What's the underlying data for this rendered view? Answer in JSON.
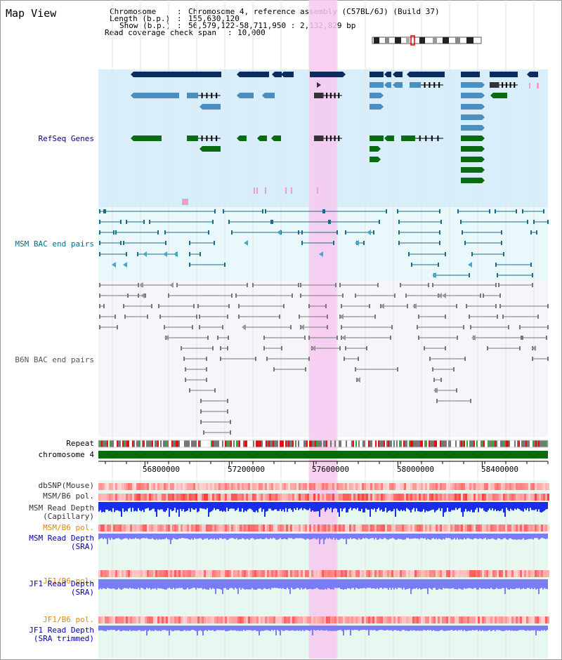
{
  "view_title": "Map View",
  "info": {
    "chromosome_label": "Chromosome",
    "chromosome_value": "Chromosome 4, reference assembly (C57BL/6J) (Build 37)",
    "length_label": "Length (b.p.)",
    "length_value": "155,630,120",
    "show_label": "Show (b.p.)",
    "show_value": "56,579,122-58,711,950 : 2,132,829 bp",
    "coverage_label": "Read coverage check span",
    "coverage_value": "10,000"
  },
  "tracks": {
    "refseq": {
      "label": "RefSeq Genes",
      "color": "#00008b"
    },
    "msm_bac": {
      "label": "MSM BAC end pairs",
      "color": "#006b8b"
    },
    "b6n_bac": {
      "label": "B6N BAC end pairs",
      "color": "#555555"
    },
    "repeat": {
      "label": "Repeat",
      "color": "#000000"
    },
    "chromosome": {
      "label": "chromosome 4",
      "color": "#000000"
    },
    "dbsnp": {
      "label": "dbSNP(Mouse)",
      "color": "#000000"
    },
    "msm_b6_pol_1": {
      "label": "MSM/B6 pol.",
      "color": "#000000"
    },
    "msm_depth_cap": {
      "label": "MSM Read Depth\n(Capillary)",
      "color": "#000000"
    },
    "msm_b6_pol_2": {
      "label": "MSM/B6 pol.",
      "color": "#e08a00"
    },
    "msm_depth_sra": {
      "label": "MSM Read Depth\n(SRA)",
      "color": "#0000aa"
    },
    "jf1_b6_pol_1": {
      "label": "JF1/B6 pol.",
      "color": "#e08a00"
    },
    "jf1_depth_sra": {
      "label": "JF1 Read Depth\n(SRA)",
      "color": "#0000aa"
    },
    "jf1_b6_pol_2": {
      "label": "JF1/B6 pol.",
      "color": "#e08a00"
    },
    "jf1_depth_trim": {
      "label": "JF1 Read Depth\n(SRA trimmed)",
      "color": "#0000aa"
    }
  },
  "axis": {
    "ticks": [
      "56800000",
      "57200000",
      "57600000",
      "58000000",
      "58400000"
    ],
    "tick_values": [
      56800000,
      57200000,
      57600000,
      58000000,
      58400000
    ],
    "range": [
      56579122,
      58711950
    ]
  },
  "highlight": {
    "start": 57580000,
    "end": 57710000,
    "color": "#f7c8f0"
  },
  "colors": {
    "refseq_dark": "#0b2c5e",
    "refseq_light": "#4a8fbf",
    "refseq_green": "#0a6b12",
    "msm_bac": "#1a6a8a",
    "b6n_bac": "#777777",
    "polymorphism": "#ff4d4d",
    "read_depth_capillary": "#1a2eea",
    "read_depth_sra": "#7a7cf6"
  }
}
